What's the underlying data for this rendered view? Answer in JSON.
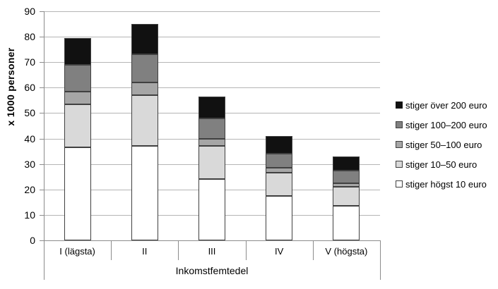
{
  "chart_data": {
    "type": "bar",
    "stacked": true,
    "title": "",
    "xlabel": "Inkomstfemtedel",
    "ylabel": "x 1000 personer",
    "ylim": [
      0,
      90
    ],
    "yticks": [
      0,
      10,
      20,
      30,
      40,
      50,
      60,
      70,
      80,
      90
    ],
    "grid": true,
    "legend_position": "right",
    "categories": [
      "I (lägsta)",
      "II",
      "III",
      "IV",
      "V (högsta)"
    ],
    "series": [
      {
        "name": "stiger högst 10 euro",
        "color": "#ffffff",
        "values": [
          36.5,
          37,
          24,
          17.5,
          13.5
        ]
      },
      {
        "name": "stiger 10–50 euro",
        "color": "#d9d9d9",
        "values": [
          17,
          20,
          13,
          9,
          7.5
        ]
      },
      {
        "name": "stiger 50–100 euro",
        "color": "#a6a6a6",
        "values": [
          5,
          5,
          3,
          2,
          1.5
        ]
      },
      {
        "name": "stiger 100–200 euro",
        "color": "#808080",
        "values": [
          10.5,
          11,
          8,
          5.5,
          5
        ]
      },
      {
        "name": "stiger över 200 euro",
        "color": "#111111",
        "values": [
          10.5,
          12,
          8.5,
          7,
          5.5
        ]
      }
    ],
    "legend_order": "top-series-first"
  },
  "colors": {
    "background": "#ffffff",
    "bar_border": "#404040",
    "axis_line": "#8c8c8c",
    "gridline": "#b5b5b5",
    "text": "#000000"
  }
}
